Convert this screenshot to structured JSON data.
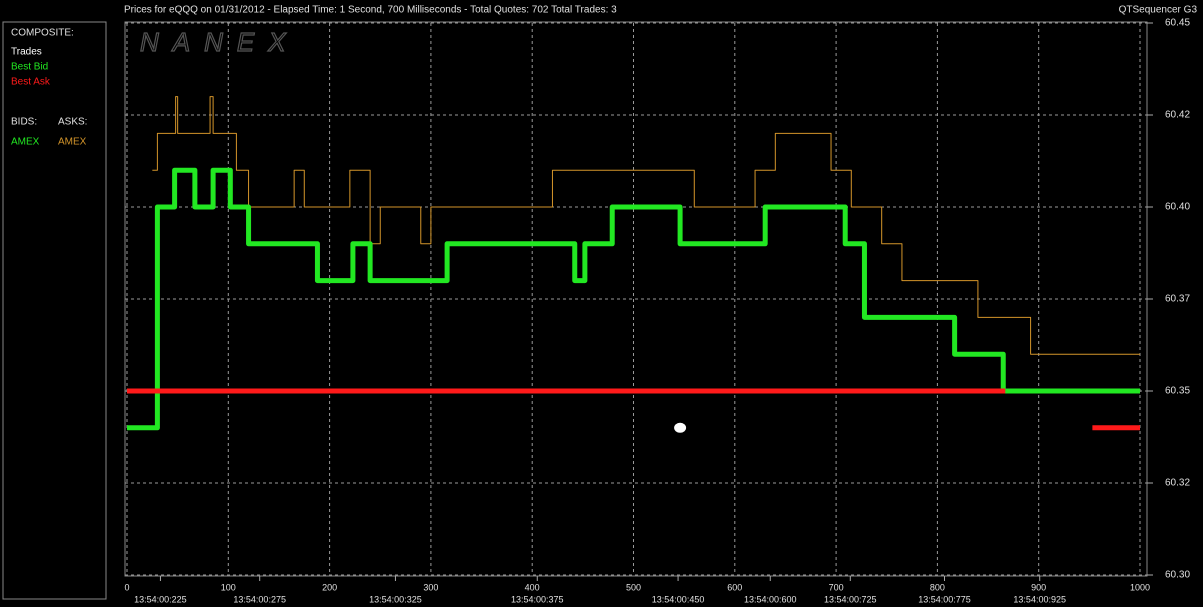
{
  "chart_data": {
    "type": "line",
    "title": "Prices for  eQQQ  on  01/31/2012  -  Elapsed Time: 1 Second, 700 Milliseconds  -  Total Quotes: 702  Total Trades: 3",
    "app_name": "QTSequencer G3",
    "watermark": "NANEX",
    "composite_label": "COMPOSITE:",
    "bids_label": "BIDS:",
    "asks_label": "ASKS:",
    "bid_exchange": "AMEX",
    "xlim": [
      0,
      1000
    ],
    "xticks": [
      0,
      100,
      200,
      300,
      400,
      500,
      600,
      700,
      800,
      900,
      1000
    ],
    "time_ticks": [
      {
        "value": 33,
        "label": "13:54:00:225"
      },
      {
        "value": 131,
        "label": "13:54:00:275"
      },
      {
        "value": 265,
        "label": "13:54:00:325"
      },
      {
        "value": 405,
        "label": "13:54:00:375"
      },
      {
        "value": 544,
        "label": "13:54:00:450"
      },
      {
        "value": 635,
        "label": "13:54:00:600"
      },
      {
        "value": 714,
        "label": "13:54:00:725"
      },
      {
        "value": 807,
        "label": "13:54:00:775"
      },
      {
        "value": 901,
        "label": "13:54:00:925"
      }
    ],
    "ylim": [
      60.3,
      60.45
    ],
    "yticks": [
      {
        "value": 60.3,
        "label": "60.30"
      },
      {
        "value": 60.325,
        "label": "60.32"
      },
      {
        "value": 60.35,
        "label": "60.35"
      },
      {
        "value": 60.375,
        "label": "60.37"
      },
      {
        "value": 60.4,
        "label": "60.40"
      },
      {
        "value": 60.425,
        "label": "60.42"
      },
      {
        "value": 60.45,
        "label": "60.45"
      }
    ],
    "grid": true,
    "series": [
      {
        "name": "Trades",
        "color": "#ffffff",
        "style": "markers",
        "x": [
          546
        ],
        "values": [
          60.34
        ]
      },
      {
        "name": "Best Bid",
        "color": "#22e822",
        "style": "step",
        "x": [
          0,
          30,
          47,
          67,
          85,
          102,
          120,
          188,
          223,
          240,
          316,
          442,
          452,
          479,
          546,
          630,
          709,
          728,
          817,
          865,
          1000
        ],
        "values": [
          60.34,
          60.4,
          60.41,
          60.4,
          60.41,
          60.4,
          60.39,
          60.38,
          60.39,
          60.38,
          60.39,
          60.38,
          60.39,
          60.4,
          60.39,
          60.4,
          60.39,
          60.37,
          60.36,
          60.35,
          60.35
        ]
      },
      {
        "name": "Best Ask",
        "color": "#ff1a1a",
        "style": "line",
        "x": [
          0,
          867,
          900,
          953,
          1000
        ],
        "values": [
          60.35,
          60.35,
          null,
          60.34,
          60.34
        ]
      },
      {
        "name": "AMEX",
        "color": "#d4952a",
        "style": "step",
        "side": "ask",
        "x": [
          25,
          30,
          48,
          50,
          82,
          85,
          108,
          120,
          165,
          175,
          220,
          240,
          250,
          290,
          300,
          420,
          464,
          560,
          620,
          640,
          695,
          715,
          745,
          765,
          840,
          892,
          1000
        ],
        "values": [
          60.41,
          60.42,
          60.43,
          60.42,
          60.43,
          60.42,
          60.41,
          60.4,
          60.41,
          60.4,
          60.41,
          60.39,
          60.4,
          60.39,
          60.4,
          60.41,
          60.41,
          60.4,
          60.41,
          60.42,
          60.41,
          60.4,
          60.39,
          60.38,
          60.37,
          60.36,
          60.36
        ]
      }
    ]
  }
}
